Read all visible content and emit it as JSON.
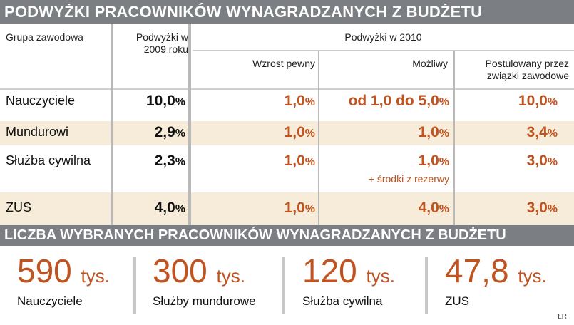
{
  "title": "PODWYŻKI PRACOWNIKÓW WYNAGRADZANYCH Z BUDŻETU",
  "table": {
    "headers": {
      "group": "Grupa zawodowa",
      "raise2009_line1": "Podwyżki w",
      "raise2009_line2": "2009 roku",
      "raise2010": "Podwyżki w 2010",
      "sure": "Wzrost pewny",
      "possible": "Możliwy",
      "postulated_line1": "Postulowany przez",
      "postulated_line2": "związki zawodowe"
    },
    "rows": [
      {
        "group": "Nauczyciele",
        "r2009": "10,0",
        "sure": "1,0",
        "possible": "od 1,0 do 5,0",
        "possible_note": "",
        "postulated": "10,0"
      },
      {
        "group": "Mundurowi",
        "r2009": "2,9",
        "sure": "1,0",
        "possible": "1,0",
        "possible_note": "",
        "postulated": "3,4"
      },
      {
        "group": "Służba cywilna",
        "r2009": "2,3",
        "sure": "1,0",
        "possible": "1,0",
        "possible_note": "+ środki z rezerwy",
        "postulated": "3,0"
      },
      {
        "group": "ZUS",
        "r2009": "4,0",
        "sure": "1,0",
        "possible": "4,0",
        "possible_note": "",
        "postulated": "3,0"
      }
    ],
    "pct_sign": "%"
  },
  "footer_title": "LICZBA WYBRANYCH PRACOWNIKÓW WYNAGRADZANYCH Z BUDŻETU",
  "stats": [
    {
      "value": "590",
      "unit": "tys.",
      "label": "Nauczyciele"
    },
    {
      "value": "300",
      "unit": "tys.",
      "label": "Służby mundurowe"
    },
    {
      "value": "120",
      "unit": "tys.",
      "label": "Służba cywilna"
    },
    {
      "value": "47,8",
      "unit": "tys.",
      "label": "ZUS"
    }
  ],
  "credit": "ŁR",
  "colors": {
    "header_bar": "#7b7e82",
    "accent": "#c0531f",
    "band": "#f7ecd9"
  }
}
